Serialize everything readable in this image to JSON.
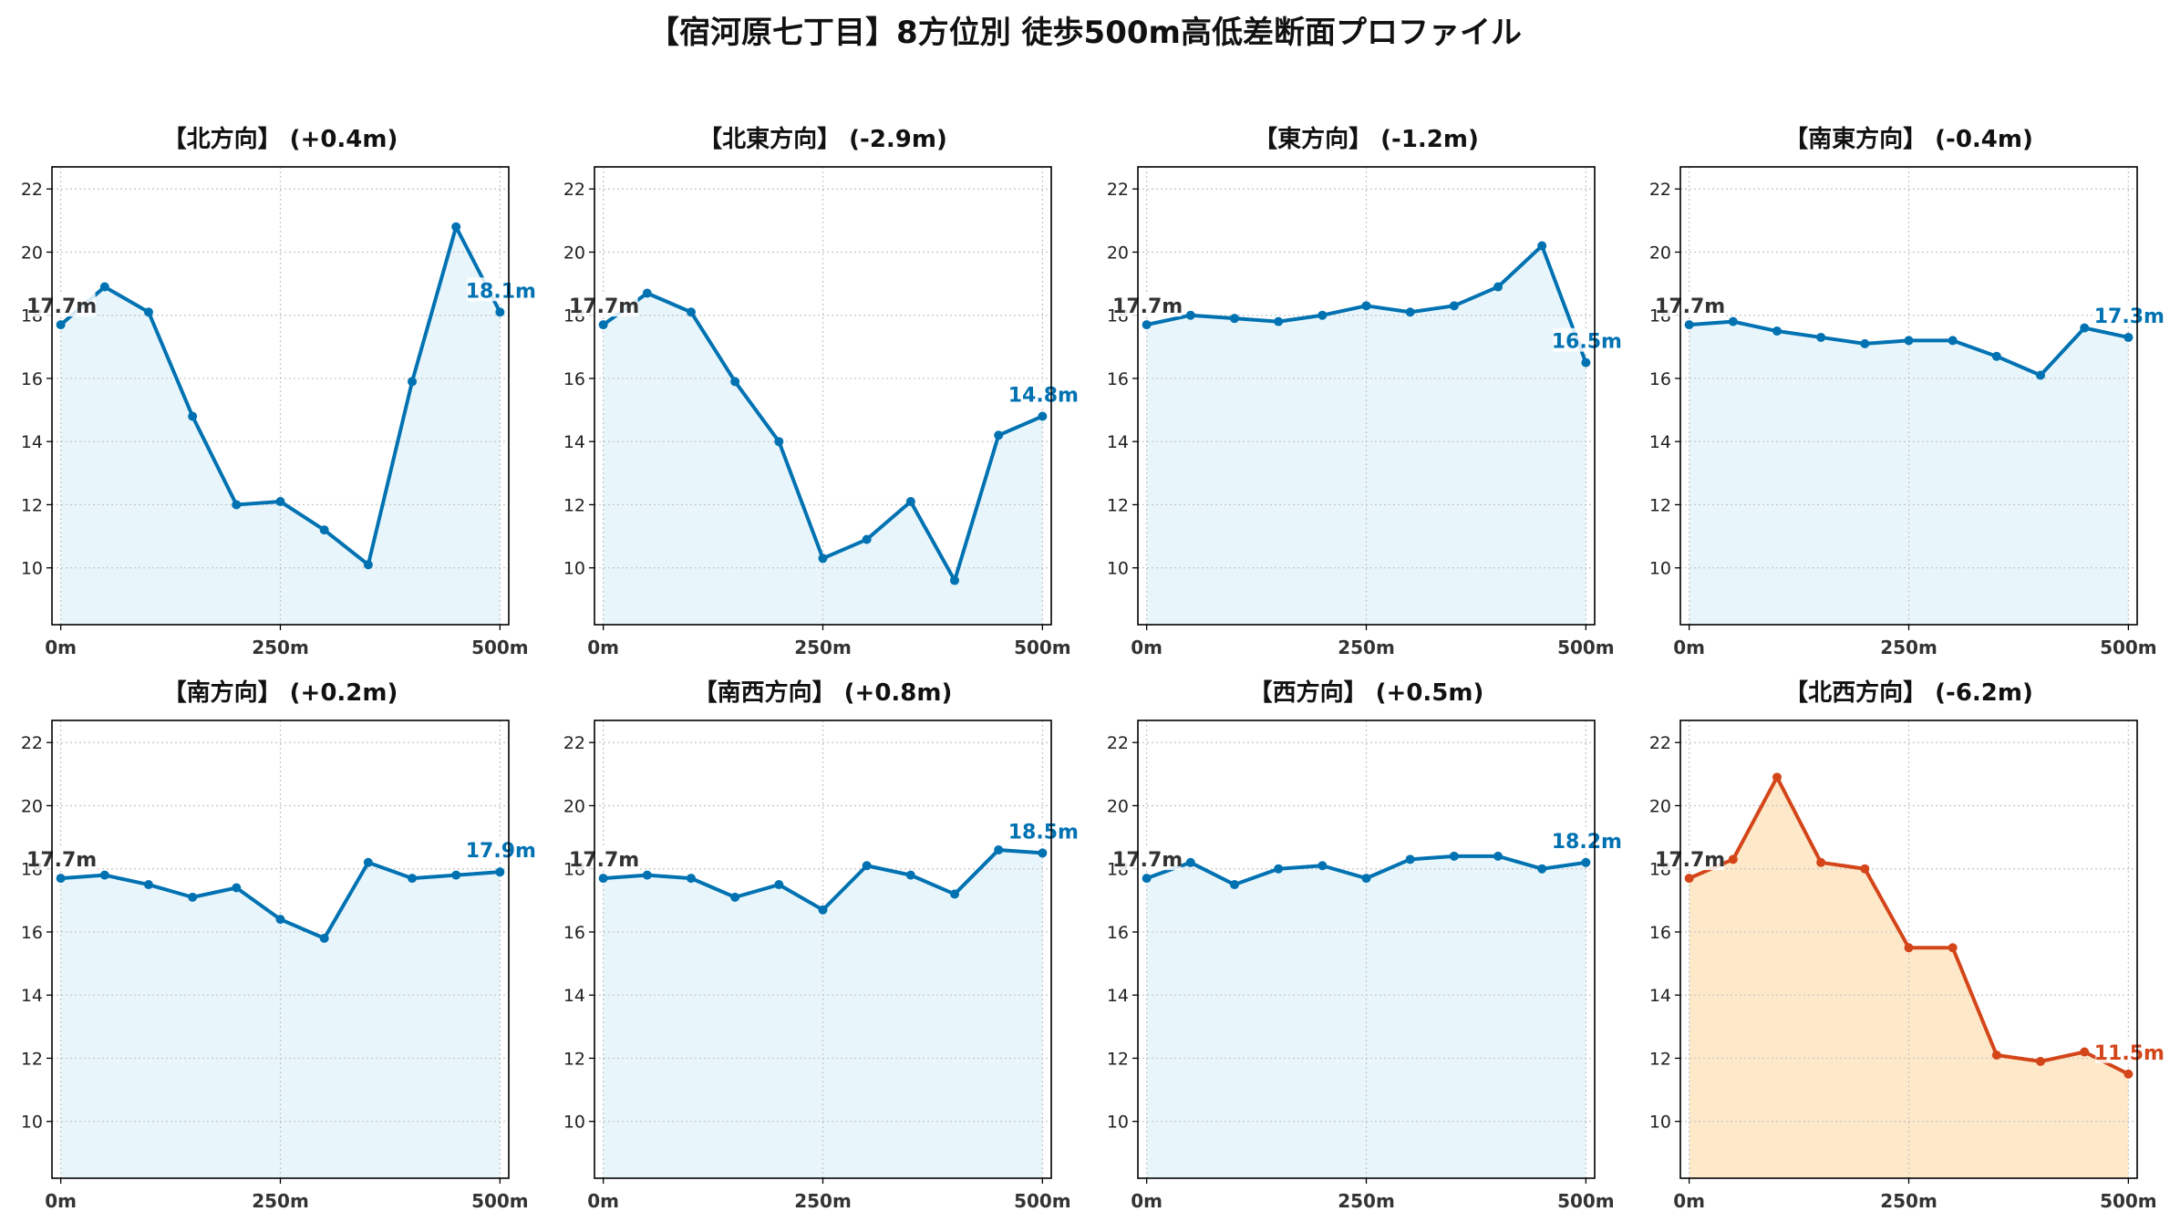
{
  "title": "【宿河原七丁目】8方位別 徒歩500m高低差断面プロファイル",
  "colors": {
    "normal_line": "#0072b2",
    "normal_fill": "#e8f6fb",
    "highlight_line": "#d4461a",
    "highlight_fill": "#fde9c9",
    "start_label": "#333333"
  },
  "chart_data": [
    {
      "type": "area",
      "title": "【北方向】 (+0.4m)",
      "x": [
        0,
        50,
        100,
        150,
        200,
        250,
        300,
        350,
        400,
        450,
        500
      ],
      "y": [
        17.7,
        18.9,
        18.1,
        14.8,
        12.0,
        12.1,
        11.2,
        10.1,
        15.9,
        20.8,
        18.1
      ],
      "start_label": "17.7m",
      "end_label": "18.1m",
      "highlight": false,
      "xticks": [
        "0m",
        "250m",
        "500m"
      ],
      "yticks": [
        10,
        12,
        14,
        16,
        18,
        20,
        22
      ],
      "ylim": [
        8.2,
        22.7
      ],
      "xlim": [
        -10,
        510
      ],
      "grid": true
    },
    {
      "type": "area",
      "title": "【北東方向】 (-2.9m)",
      "x": [
        0,
        50,
        100,
        150,
        200,
        250,
        300,
        350,
        400,
        450,
        500
      ],
      "y": [
        17.7,
        18.7,
        18.1,
        15.9,
        14.0,
        10.3,
        10.9,
        12.1,
        9.6,
        14.2,
        14.8
      ],
      "start_label": "17.7m",
      "end_label": "14.8m",
      "highlight": false,
      "xticks": [
        "0m",
        "250m",
        "500m"
      ],
      "yticks": [
        10,
        12,
        14,
        16,
        18,
        20,
        22
      ],
      "ylim": [
        8.2,
        22.7
      ],
      "xlim": [
        -10,
        510
      ],
      "grid": true
    },
    {
      "type": "area",
      "title": "【東方向】 (-1.2m)",
      "x": [
        0,
        50,
        100,
        150,
        200,
        250,
        300,
        350,
        400,
        450,
        500
      ],
      "y": [
        17.7,
        18.0,
        17.9,
        17.8,
        18.0,
        18.3,
        18.1,
        18.3,
        18.9,
        20.2,
        16.5
      ],
      "start_label": "17.7m",
      "end_label": "16.5m",
      "highlight": false,
      "xticks": [
        "0m",
        "250m",
        "500m"
      ],
      "yticks": [
        10,
        12,
        14,
        16,
        18,
        20,
        22
      ],
      "ylim": [
        8.2,
        22.7
      ],
      "xlim": [
        -10,
        510
      ],
      "grid": true
    },
    {
      "type": "area",
      "title": "【南東方向】 (-0.4m)",
      "x": [
        0,
        50,
        100,
        150,
        200,
        250,
        300,
        350,
        400,
        450,
        500
      ],
      "y": [
        17.7,
        17.8,
        17.5,
        17.3,
        17.1,
        17.2,
        17.2,
        16.7,
        16.1,
        17.6,
        17.3
      ],
      "start_label": "17.7m",
      "end_label": "17.3m",
      "highlight": false,
      "xticks": [
        "0m",
        "250m",
        "500m"
      ],
      "yticks": [
        10,
        12,
        14,
        16,
        18,
        20,
        22
      ],
      "ylim": [
        8.2,
        22.7
      ],
      "xlim": [
        -10,
        510
      ],
      "grid": true
    },
    {
      "type": "area",
      "title": "【南方向】 (+0.2m)",
      "x": [
        0,
        50,
        100,
        150,
        200,
        250,
        300,
        350,
        400,
        450,
        500
      ],
      "y": [
        17.7,
        17.8,
        17.5,
        17.1,
        17.4,
        16.4,
        15.8,
        18.2,
        17.7,
        17.8,
        17.9
      ],
      "start_label": "17.7m",
      "end_label": "17.9m",
      "highlight": false,
      "xticks": [
        "0m",
        "250m",
        "500m"
      ],
      "yticks": [
        10,
        12,
        14,
        16,
        18,
        20,
        22
      ],
      "ylim": [
        8.2,
        22.7
      ],
      "xlim": [
        -10,
        510
      ],
      "grid": true
    },
    {
      "type": "area",
      "title": "【南西方向】 (+0.8m)",
      "x": [
        0,
        50,
        100,
        150,
        200,
        250,
        300,
        350,
        400,
        450,
        500
      ],
      "y": [
        17.7,
        17.8,
        17.7,
        17.1,
        17.5,
        16.7,
        18.1,
        17.8,
        17.2,
        18.6,
        18.5
      ],
      "start_label": "17.7m",
      "end_label": "18.5m",
      "highlight": false,
      "xticks": [
        "0m",
        "250m",
        "500m"
      ],
      "yticks": [
        10,
        12,
        14,
        16,
        18,
        20,
        22
      ],
      "ylim": [
        8.2,
        22.7
      ],
      "xlim": [
        -10,
        510
      ],
      "grid": true
    },
    {
      "type": "area",
      "title": "【西方向】 (+0.5m)",
      "x": [
        0,
        50,
        100,
        150,
        200,
        250,
        300,
        350,
        400,
        450,
        500
      ],
      "y": [
        17.7,
        18.2,
        17.5,
        18.0,
        18.1,
        17.7,
        18.3,
        18.4,
        18.4,
        18.0,
        18.2
      ],
      "start_label": "17.7m",
      "end_label": "18.2m",
      "highlight": false,
      "xticks": [
        "0m",
        "250m",
        "500m"
      ],
      "yticks": [
        10,
        12,
        14,
        16,
        18,
        20,
        22
      ],
      "ylim": [
        8.2,
        22.7
      ],
      "xlim": [
        -10,
        510
      ],
      "grid": true
    },
    {
      "type": "area",
      "title": "【北西方向】 (-6.2m)",
      "x": [
        0,
        50,
        100,
        150,
        200,
        250,
        300,
        350,
        400,
        450,
        500
      ],
      "y": [
        17.7,
        18.3,
        20.9,
        18.2,
        18.0,
        15.5,
        15.5,
        12.1,
        11.9,
        12.2,
        11.5
      ],
      "start_label": "17.7m",
      "end_label": "11.5m",
      "highlight": true,
      "xticks": [
        "0m",
        "250m",
        "500m"
      ],
      "yticks": [
        10,
        12,
        14,
        16,
        18,
        20,
        22
      ],
      "ylim": [
        8.2,
        22.7
      ],
      "xlim": [
        -10,
        510
      ],
      "grid": true
    }
  ]
}
